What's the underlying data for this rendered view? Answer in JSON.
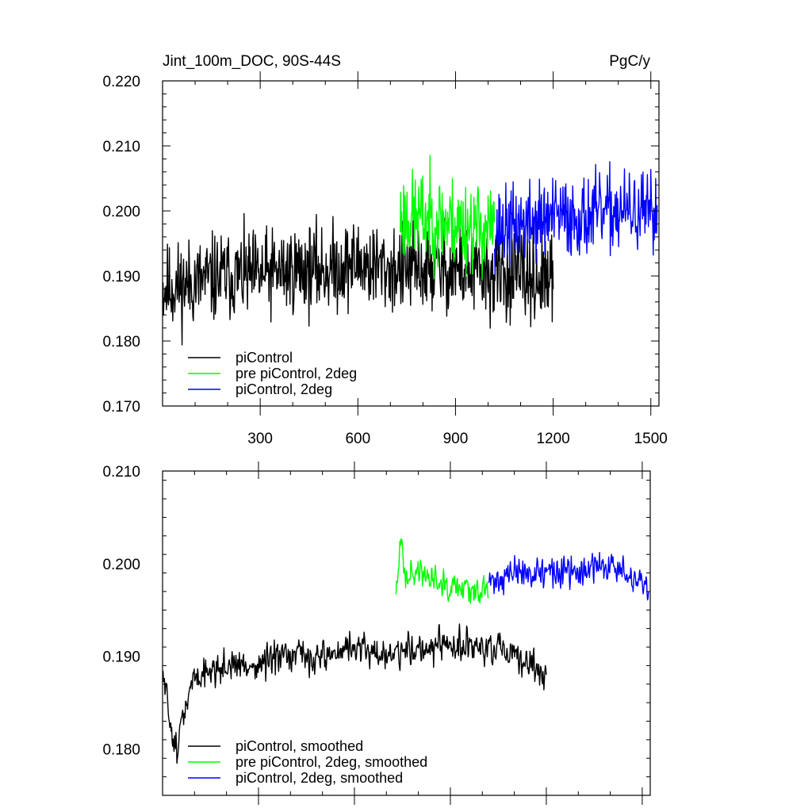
{
  "chart_data": [
    {
      "type": "line",
      "title": "Jint_100m_DOC, 90S-44S",
      "units": "PgC/y",
      "xlabel": "",
      "ylabel": "",
      "xlim": [
        0,
        1525
      ],
      "ylim": [
        0.17,
        0.22
      ],
      "x_ticks": [
        300,
        600,
        900,
        1200,
        1500
      ],
      "y_ticks": [
        "0.170",
        "0.180",
        "0.190",
        "0.200",
        "0.210",
        "0.220"
      ],
      "legend_position": "bottom-left",
      "grid": false,
      "series": [
        {
          "name": "piControl",
          "color": "#000000",
          "x": [
            0,
            100,
            200,
            300,
            400,
            500,
            600,
            700,
            800,
            900,
            1000,
            1100,
            1200
          ],
          "values": [
            0.188,
            0.189,
            0.19,
            0.19,
            0.191,
            0.191,
            0.192,
            0.191,
            0.191,
            0.191,
            0.19,
            0.19,
            0.189
          ],
          "spread": 0.0072,
          "seed": 11
        },
        {
          "name": "pre piControl, 2deg",
          "color": "#00ff00",
          "x": [
            730,
            800,
            900,
            1020
          ],
          "values": [
            0.199,
            0.199,
            0.198,
            0.197
          ],
          "spread": 0.0075,
          "seed": 23
        },
        {
          "name": "piControl, 2deg",
          "color": "#0000ff",
          "x": [
            1020,
            1100,
            1200,
            1300,
            1400,
            1520
          ],
          "values": [
            0.197,
            0.198,
            0.199,
            0.199,
            0.2,
            0.199
          ],
          "spread": 0.0065,
          "seed": 37
        }
      ]
    },
    {
      "type": "line",
      "title": "",
      "xlabel": "",
      "ylabel": "",
      "xlim": [
        0,
        1525
      ],
      "ylim": [
        0.175,
        0.21
      ],
      "x_ticks": [
        300,
        600,
        900,
        1200,
        1500
      ],
      "y_ticks": [
        "0.180",
        "0.190",
        "0.200",
        "0.210"
      ],
      "legend_position": "bottom-left",
      "grid": false,
      "series": [
        {
          "name": "piControl, smoothed",
          "color": "#000000",
          "x": [
            0,
            20,
            40,
            100,
            200,
            300,
            400,
            500,
            600,
            700,
            800,
            900,
            1000,
            1100,
            1200
          ],
          "values": [
            0.188,
            0.184,
            0.18,
            0.188,
            0.189,
            0.189,
            0.19,
            0.19,
            0.191,
            0.19,
            0.191,
            0.191,
            0.191,
            0.19,
            0.188
          ],
          "spread": 0.0022,
          "seed": 51
        },
        {
          "name": "pre piControl, 2deg, smoothed",
          "color": "#00ff00",
          "x": [
            730,
            745,
            760,
            800,
            900,
            1020
          ],
          "values": [
            0.196,
            0.203,
            0.199,
            0.199,
            0.198,
            0.197
          ],
          "spread": 0.002,
          "seed": 63
        },
        {
          "name": "piControl, 2deg, smoothed",
          "color": "#0000ff",
          "x": [
            1020,
            1100,
            1200,
            1300,
            1400,
            1520
          ],
          "values": [
            0.198,
            0.199,
            0.199,
            0.199,
            0.2,
            0.197
          ],
          "spread": 0.002,
          "seed": 71
        }
      ]
    }
  ]
}
